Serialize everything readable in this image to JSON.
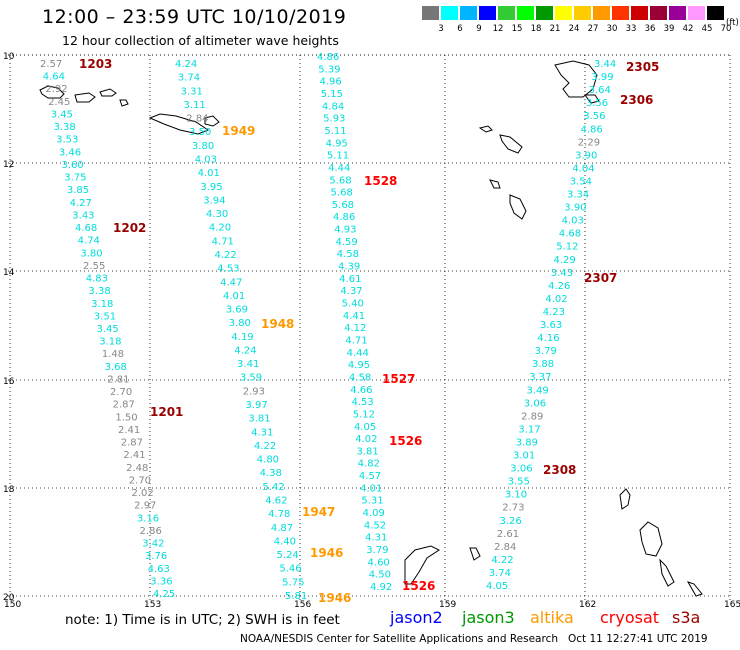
{
  "header": {
    "title": "12:00 – 23:59 UTC 10/10/2019",
    "subtitle": "12 hour collection of altimeter wave heights"
  },
  "colorbar": {
    "labels": [
      "3",
      "6",
      "9",
      "12",
      "15",
      "18",
      "21",
      "24",
      "27",
      "30",
      "33",
      "36",
      "39",
      "42",
      "45",
      "70"
    ],
    "colors": [
      "#777777",
      "#00ffff",
      "#00b4ff",
      "#0000ff",
      "#33cc33",
      "#00ff00",
      "#009900",
      "#ffff00",
      "#ffcc00",
      "#ff9900",
      "#ff3300",
      "#cc0000",
      "#990033",
      "#990099",
      "#ff99ff",
      "#000000"
    ],
    "unit": "(ft)"
  },
  "map": {
    "lat_labels": [
      "10",
      "12",
      "14",
      "16",
      "18",
      "20"
    ],
    "lon_labels": [
      "150",
      "153",
      "156",
      "159",
      "162",
      "165"
    ],
    "tracks": [
      {
        "mark": "1203",
        "time_color": "#990000",
        "time_x": 79,
        "time_y": 68,
        "ticks": [
          [
            "2.57",
            "#888888"
          ],
          [
            "4.64",
            "#00dddd"
          ],
          [
            "2.92",
            "#888888"
          ],
          [
            "2.45",
            "#888888"
          ],
          [
            "3.45",
            "#00dddd"
          ],
          [
            "3.38",
            "#00dddd"
          ],
          [
            "3.53",
            "#00dddd"
          ],
          [
            "3.46",
            "#00dddd"
          ],
          [
            "3.60",
            "#00dddd"
          ],
          [
            "3.75",
            "#00dddd"
          ],
          [
            "3.85",
            "#00dddd"
          ],
          [
            "4.27",
            "#00dddd"
          ],
          [
            "3.43",
            "#00dddd"
          ],
          [
            "4.68",
            "#00dddd"
          ],
          [
            "4.74",
            "#00dddd"
          ],
          [
            "3.80",
            "#00dddd"
          ],
          [
            "2.55",
            "#888888"
          ],
          [
            "4.83",
            "#00dddd"
          ],
          [
            "3.38",
            "#00dddd"
          ],
          [
            "3.18",
            "#00dddd"
          ],
          [
            "3.51",
            "#00dddd"
          ],
          [
            "3.45",
            "#00dddd"
          ],
          [
            "3.18",
            "#00dddd"
          ],
          [
            "1.48",
            "#888888"
          ],
          [
            "3.68",
            "#00dddd"
          ],
          [
            "2.81",
            "#888888"
          ],
          [
            "2.70",
            "#888888"
          ],
          [
            "2.87",
            "#888888"
          ],
          [
            "1.50",
            "#888888"
          ],
          [
            "2.41",
            "#888888"
          ],
          [
            "2.87",
            "#888888"
          ],
          [
            "2.41",
            "#888888"
          ],
          [
            "2.48",
            "#888888"
          ],
          [
            "2.70",
            "#888888"
          ],
          [
            "2.02",
            "#888888"
          ],
          [
            "2.97",
            "#888888"
          ],
          [
            "3.16",
            "#00dddd"
          ],
          [
            "2.86",
            "#888888"
          ],
          [
            "3.42",
            "#00dddd"
          ],
          [
            "3.76",
            "#00dddd"
          ],
          [
            "4.63",
            "#00dddd"
          ],
          [
            "3.36",
            "#00dddd"
          ],
          [
            "4.25",
            "#00dddd"
          ]
        ]
      },
      {
        "mark": "1949",
        "time_color": "#ff9900",
        "time_x": 222,
        "time_y": 135,
        "ticks": [
          [
            "4.24",
            "#00dddd"
          ],
          [
            "3.74",
            "#00dddd"
          ],
          [
            "3.31",
            "#00dddd"
          ],
          [
            "3.11",
            "#00dddd"
          ],
          [
            "2.84",
            "#888888"
          ],
          [
            "3.50",
            "#00dddd"
          ],
          [
            "3.80",
            "#00dddd"
          ],
          [
            "4.03",
            "#00dddd"
          ],
          [
            "4.01",
            "#00dddd"
          ],
          [
            "3.95",
            "#00dddd"
          ],
          [
            "3.94",
            "#00dddd"
          ],
          [
            "4.30",
            "#00dddd"
          ],
          [
            "4.20",
            "#00dddd"
          ],
          [
            "4.71",
            "#00dddd"
          ],
          [
            "4.22",
            "#00dddd"
          ],
          [
            "4.53",
            "#00dddd"
          ],
          [
            "4.47",
            "#00dddd"
          ],
          [
            "4.01",
            "#00dddd"
          ],
          [
            "3.69",
            "#00dddd"
          ],
          [
            "3.80",
            "#00dddd"
          ],
          [
            "4.19",
            "#00dddd"
          ],
          [
            "4.24",
            "#00dddd"
          ],
          [
            "3.41",
            "#00dddd"
          ],
          [
            "3.59",
            "#00dddd"
          ],
          [
            "2.93",
            "#888888"
          ],
          [
            "3.97",
            "#00dddd"
          ],
          [
            "3.81",
            "#00dddd"
          ],
          [
            "4.31",
            "#00dddd"
          ],
          [
            "4.22",
            "#00dddd"
          ],
          [
            "4.80",
            "#00dddd"
          ],
          [
            "4.38",
            "#00dddd"
          ],
          [
            "5.42",
            "#00dddd"
          ],
          [
            "4.62",
            "#00dddd"
          ],
          [
            "4.78",
            "#00dddd"
          ],
          [
            "4.87",
            "#00dddd"
          ],
          [
            "4.40",
            "#00dddd"
          ],
          [
            "5.24",
            "#00dddd"
          ],
          [
            "5.46",
            "#00dddd"
          ],
          [
            "5.75",
            "#00dddd"
          ],
          [
            "5.81",
            "#00dddd"
          ]
        ]
      },
      {
        "mark": "1528",
        "time_color": "#ff0000",
        "time_x": 364,
        "time_y": 185,
        "ticks": [
          [
            "4.86",
            "#00dddd"
          ],
          [
            "5.39",
            "#00dddd"
          ],
          [
            "4.96",
            "#00dddd"
          ],
          [
            "5.15",
            "#00dddd"
          ],
          [
            "4.84",
            "#00dddd"
          ],
          [
            "5.93",
            "#00dddd"
          ],
          [
            "5.11",
            "#00dddd"
          ],
          [
            "4.95",
            "#00dddd"
          ],
          [
            "5.11",
            "#00dddd"
          ],
          [
            "4.44",
            "#00dddd"
          ],
          [
            "5.68",
            "#00dddd"
          ],
          [
            "5.68",
            "#00dddd"
          ],
          [
            "5.68",
            "#00dddd"
          ],
          [
            "4.86",
            "#00dddd"
          ],
          [
            "4.93",
            "#00dddd"
          ],
          [
            "4.59",
            "#00dddd"
          ],
          [
            "4.58",
            "#00dddd"
          ],
          [
            "4.39",
            "#00dddd"
          ],
          [
            "4.61",
            "#00dddd"
          ],
          [
            "4.37",
            "#00dddd"
          ],
          [
            "5.40",
            "#00dddd"
          ],
          [
            "4.41",
            "#00dddd"
          ],
          [
            "4.12",
            "#00dddd"
          ],
          [
            "4.71",
            "#00dddd"
          ],
          [
            "4.44",
            "#00dddd"
          ],
          [
            "4.95",
            "#00dddd"
          ],
          [
            "4.58",
            "#00dddd"
          ],
          [
            "4.66",
            "#00dddd"
          ],
          [
            "4.53",
            "#00dddd"
          ],
          [
            "5.12",
            "#00dddd"
          ],
          [
            "4.05",
            "#00dddd"
          ],
          [
            "4.02",
            "#00dddd"
          ],
          [
            "3.81",
            "#00dddd"
          ],
          [
            "4.82",
            "#00dddd"
          ],
          [
            "4.57",
            "#00dddd"
          ],
          [
            "4.01",
            "#00dddd"
          ],
          [
            "5.31",
            "#00dddd"
          ],
          [
            "4.09",
            "#00dddd"
          ],
          [
            "4.52",
            "#00dddd"
          ],
          [
            "4.31",
            "#00dddd"
          ],
          [
            "3.79",
            "#00dddd"
          ],
          [
            "4.60",
            "#00dddd"
          ],
          [
            "4.50",
            "#00dddd"
          ],
          [
            "4.92",
            "#00dddd"
          ]
        ]
      },
      {
        "mark": "2305",
        "time_color": "#990000",
        "time_x": 626,
        "time_y": 71,
        "ticks": [
          [
            "3.44",
            "#00dddd"
          ],
          [
            "3.99",
            "#00dddd"
          ],
          [
            "3.64",
            "#00dddd"
          ],
          [
            "3.56",
            "#00dddd"
          ],
          [
            "3.56",
            "#00dddd"
          ],
          [
            "4.86",
            "#00dddd"
          ],
          [
            "2.29",
            "#888888"
          ],
          [
            "3.90",
            "#00dddd"
          ],
          [
            "4.04",
            "#00dddd"
          ],
          [
            "3.54",
            "#00dddd"
          ],
          [
            "3.34",
            "#00dddd"
          ],
          [
            "3.90",
            "#00dddd"
          ],
          [
            "4.03",
            "#00dddd"
          ],
          [
            "4.68",
            "#00dddd"
          ],
          [
            "5.12",
            "#00dddd"
          ],
          [
            "4.29",
            "#00dddd"
          ],
          [
            "3.43",
            "#00dddd"
          ],
          [
            "4.26",
            "#00dddd"
          ],
          [
            "4.02",
            "#00dddd"
          ],
          [
            "4.23",
            "#00dddd"
          ],
          [
            "3.63",
            "#00dddd"
          ],
          [
            "4.16",
            "#00dddd"
          ],
          [
            "3.79",
            "#00dddd"
          ],
          [
            "3.88",
            "#00dddd"
          ],
          [
            "3.37",
            "#00dddd"
          ],
          [
            "3.49",
            "#00dddd"
          ],
          [
            "3.06",
            "#00dddd"
          ],
          [
            "2.89",
            "#888888"
          ],
          [
            "3.17",
            "#00dddd"
          ],
          [
            "3.89",
            "#00dddd"
          ],
          [
            "3.01",
            "#00dddd"
          ],
          [
            "3.06",
            "#00dddd"
          ],
          [
            "3.55",
            "#00dddd"
          ],
          [
            "3.10",
            "#00dddd"
          ],
          [
            "2.73",
            "#888888"
          ],
          [
            "3.26",
            "#00dddd"
          ],
          [
            "2.61",
            "#888888"
          ],
          [
            "2.84",
            "#888888"
          ],
          [
            "4.22",
            "#00dddd"
          ],
          [
            "3.74",
            "#00dddd"
          ],
          [
            "4.05",
            "#00dddd"
          ]
        ]
      }
    ],
    "time_labels": [
      {
        "text": "1202",
        "color": "#990000"
      },
      {
        "text": "1201",
        "color": "#990000"
      },
      {
        "text": "1948",
        "color": "#ff9900"
      },
      {
        "text": "1947",
        "color": "#ff9900"
      },
      {
        "text": "1946",
        "color": "#ff9900"
      },
      {
        "text": "1946",
        "color": "#ff9900"
      },
      {
        "text": "1527",
        "color": "#ff0000"
      },
      {
        "text": "1526",
        "color": "#ff0000"
      },
      {
        "text": "1526",
        "color": "#ff0000"
      },
      {
        "text": "2306",
        "color": "#990000"
      },
      {
        "text": "2307",
        "color": "#990000"
      },
      {
        "text": "2308",
        "color": "#990000"
      }
    ]
  },
  "footer": {
    "note": "note: 1) Time is in UTC; 2) SWH is in feet",
    "legend": [
      {
        "name": "jason2",
        "color": "#0000ff"
      },
      {
        "name": "jason3",
        "color": "#009900"
      },
      {
        "name": "altika",
        "color": "#ff9900"
      },
      {
        "name": "cryosat",
        "color": "#ff0000"
      },
      {
        "name": "s3a",
        "color": "#990000"
      }
    ],
    "credit": "NOAA/NESDIS Center for Satellite Applications and Research   Oct 11 12:27:41 UTC 2019"
  }
}
